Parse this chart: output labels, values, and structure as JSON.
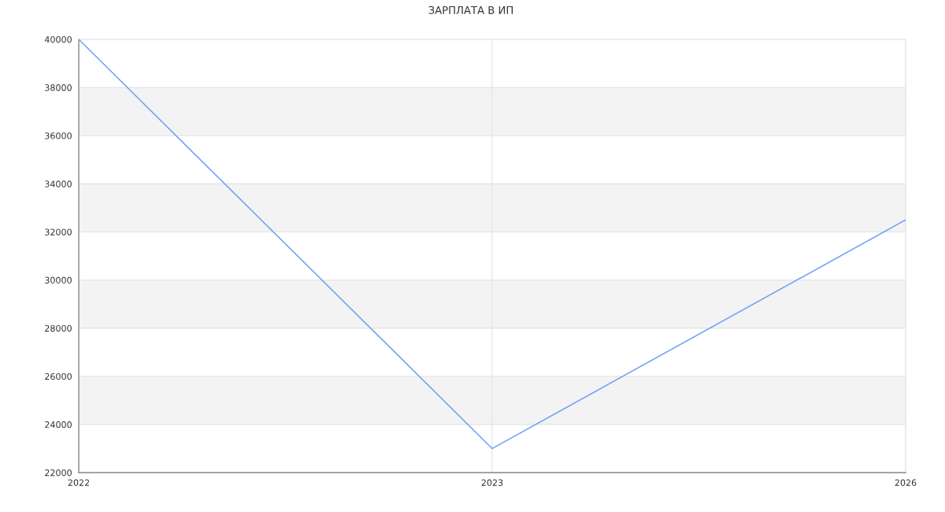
{
  "chart_data": {
    "type": "line",
    "title": "ЗАРПЛАТА В ИП",
    "categories": [
      "2022",
      "2023",
      "2026"
    ],
    "series": [
      {
        "color": "#6f9ef8",
        "values": [
          40000,
          23000,
          32500
        ]
      }
    ],
    "ylim": [
      22000,
      40000
    ],
    "yticks": [
      22000,
      24000,
      26000,
      28000,
      30000,
      32000,
      34000,
      36000,
      38000,
      40000
    ],
    "bands": [
      {
        "axis": "y",
        "from": 24000,
        "to": 26000,
        "color": "#f3f3f3"
      },
      {
        "axis": "y",
        "from": 28000,
        "to": 30000,
        "color": "#f3f3f3"
      },
      {
        "axis": "y",
        "from": 32000,
        "to": 34000,
        "color": "#f3f3f3"
      },
      {
        "axis": "y",
        "from": 36000,
        "to": 38000,
        "color": "#f3f3f3"
      }
    ],
    "grid": true,
    "marker": "none",
    "line_style": "solid"
  }
}
